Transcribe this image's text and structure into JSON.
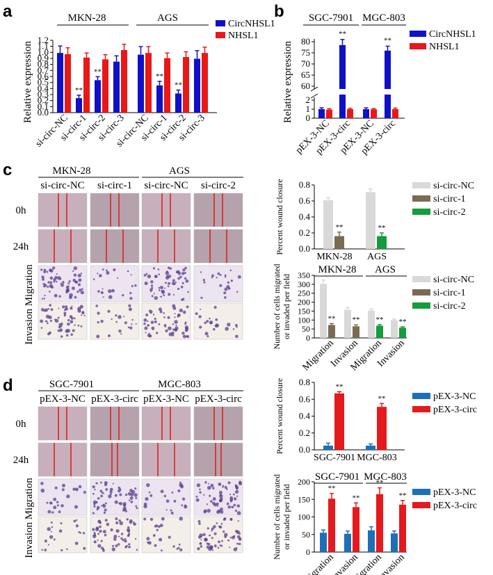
{
  "panel_labels": {
    "a": "a",
    "b": "b",
    "c": "c",
    "d": "d"
  },
  "colors": {
    "blue": "#1010c8",
    "red": "#e81818",
    "lightgray": "#d9d9d9",
    "brown": "#7b6b55",
    "green": "#159c3c",
    "steelblue": "#1f6fb8",
    "crimson": "#e41a1c"
  },
  "sig": "**",
  "chart_data": [
    {
      "id": "a",
      "type": "bar",
      "group_labels": [
        "MKN-28",
        "AGS"
      ],
      "categories": [
        "si-circ-NC",
        "si-circ-1",
        "si-circ-2",
        "si-circ-3",
        "si-circ-NC",
        "si-circ-1",
        "si-circ-2",
        "si-circ-3"
      ],
      "ylabel": "Relative expression",
      "ylim": [
        0,
        1.2
      ],
      "yticks": [
        "0.0",
        "0.1",
        "0.2",
        "0.3",
        "0.4",
        "0.5",
        "0.6",
        "0.7",
        "0.8",
        "0.9",
        "1.0",
        "1.1",
        "1.2"
      ],
      "series": [
        {
          "name": "CircNHSL1",
          "color": "#1010c8",
          "values": [
            1.03,
            0.25,
            0.56,
            0.88,
            1.0,
            0.47,
            0.33,
            0.93
          ],
          "errors": [
            0.12,
            0.05,
            0.06,
            0.1,
            0.14,
            0.07,
            0.06,
            0.14
          ],
          "sig": [
            false,
            true,
            true,
            false,
            false,
            true,
            true,
            false
          ]
        },
        {
          "name": "NHSL1",
          "color": "#e81818",
          "values": [
            1.01,
            0.95,
            0.92,
            1.08,
            1.03,
            0.94,
            0.96,
            1.03
          ],
          "errors": [
            0.11,
            0.08,
            0.08,
            0.1,
            0.11,
            0.09,
            0.09,
            0.1
          ],
          "sig": [
            false,
            false,
            false,
            false,
            false,
            false,
            false,
            false
          ]
        }
      ]
    },
    {
      "id": "b",
      "type": "bar",
      "group_labels": [
        "SGC-7901",
        "MGC-803"
      ],
      "categories": [
        "pEX-3-NC",
        "pEX-3-circ",
        "pEX-3-NC",
        "pEX-3-circ"
      ],
      "ylabel": "Relative expression",
      "yticks_upper": [
        "60",
        "65",
        "70",
        "75",
        "80"
      ],
      "yticks_lower": [
        "0",
        "1",
        "2"
      ],
      "series": [
        {
          "name": "CircNHSL1",
          "color": "#1010c8",
          "values": [
            1.0,
            78.5,
            1.0,
            76.0
          ],
          "errors": [
            0.15,
            2.5,
            0.15,
            2.0
          ],
          "sig": [
            false,
            true,
            false,
            true
          ]
        },
        {
          "name": "NHSL1",
          "color": "#e81818",
          "values": [
            0.95,
            1.0,
            0.98,
            1.0
          ],
          "errors": [
            0.1,
            0.1,
            0.08,
            0.12
          ],
          "sig": [
            false,
            false,
            false,
            false
          ]
        }
      ]
    },
    {
      "id": "c1",
      "type": "bar",
      "categories": [
        "MKN-28",
        "AGS"
      ],
      "ylabel": "Percent wound closure",
      "ylim": [
        0,
        0.8
      ],
      "yticks": [
        "0.0",
        "0.2",
        "0.4",
        "0.6",
        "0.8"
      ],
      "series": [
        {
          "name": "si-circ-NC",
          "color": "#d9d9d9",
          "values": [
            0.61,
            0.71
          ],
          "errors": [
            0.03,
            0.04
          ],
          "sig": [
            false,
            false
          ]
        },
        {
          "name": "si-circ-1",
          "color": "#7b6b55",
          "values": [
            0.16,
            null
          ],
          "errors": [
            0.05,
            null
          ],
          "sig": [
            true,
            false
          ]
        },
        {
          "name": "si-circ-2",
          "color": "#159c3c",
          "values": [
            null,
            0.16
          ],
          "errors": [
            null,
            0.04
          ],
          "sig": [
            false,
            true
          ]
        }
      ]
    },
    {
      "id": "c2",
      "type": "bar",
      "group_labels": [
        "MKN-28",
        "AGS"
      ],
      "categories": [
        "Migration",
        "Invasion",
        "Migration",
        "Invasion"
      ],
      "ylabel": "Number of cells migrated or invaded per field",
      "ylim": [
        0,
        350
      ],
      "yticks": [
        "0",
        "50",
        "100",
        "150",
        "200",
        "250",
        "300",
        "350"
      ],
      "series": [
        {
          "name": "si-circ-NC",
          "color": "#d9d9d9",
          "values": [
            302,
            158,
            152,
            100
          ],
          "errors": [
            22,
            12,
            10,
            6
          ],
          "sig": [
            false,
            false,
            false,
            false
          ]
        },
        {
          "name": "si-circ-1",
          "color": "#7b6b55",
          "values": [
            72,
            65,
            null,
            null
          ],
          "errors": [
            8,
            8,
            null,
            null
          ],
          "sig": [
            true,
            true,
            false,
            false
          ]
        },
        {
          "name": "si-circ-2",
          "color": "#159c3c",
          "values": [
            null,
            null,
            68,
            57
          ],
          "errors": [
            null,
            null,
            6,
            5
          ],
          "sig": [
            false,
            false,
            true,
            true
          ]
        }
      ]
    },
    {
      "id": "d1",
      "type": "bar",
      "categories": [
        "SGC-7901",
        "MGC-803"
      ],
      "ylabel": "Percent wound closure",
      "ylim": [
        0,
        0.8
      ],
      "yticks": [
        "0.0",
        "0.2",
        "0.4",
        "0.6",
        "0.8"
      ],
      "series": [
        {
          "name": "pEX-3-NC",
          "color": "#1f6fb8",
          "values": [
            0.05,
            0.05
          ],
          "errors": [
            0.03,
            0.02
          ],
          "sig": [
            false,
            false
          ]
        },
        {
          "name": "pEX-3-circ",
          "color": "#e41a1c",
          "values": [
            0.67,
            0.51
          ],
          "errors": [
            0.02,
            0.04
          ],
          "sig": [
            true,
            true
          ]
        }
      ]
    },
    {
      "id": "d2",
      "type": "bar",
      "group_labels": [
        "SGC-7901",
        "MGC-803"
      ],
      "categories": [
        "Migration",
        "Invasion",
        "Migration",
        "Invasion"
      ],
      "ylabel": "Number of cells migrated or invaded per field",
      "ylim": [
        0,
        200
      ],
      "yticks": [
        "0",
        "50",
        "100",
        "150",
        "200"
      ],
      "series": [
        {
          "name": "pEX-3-NC",
          "color": "#1f6fb8",
          "values": [
            55,
            52,
            62,
            53
          ],
          "errors": [
            8,
            8,
            10,
            7
          ],
          "sig": [
            false,
            false,
            false,
            false
          ]
        },
        {
          "name": "pEX-3-circ",
          "color": "#e41a1c",
          "values": [
            152,
            128,
            165,
            135
          ],
          "errors": [
            15,
            12,
            18,
            12
          ],
          "sig": [
            true,
            true,
            true,
            true
          ]
        }
      ]
    }
  ],
  "image_grid_c": {
    "group_labels": [
      "MKN-28",
      "AGS"
    ],
    "column_labels": [
      "si-circ-NC",
      "si-circ-1",
      "si-circ-NC",
      "si-circ-2"
    ],
    "row_labels": [
      "0h",
      "24h"
    ],
    "side_label": "Invasion Migration"
  },
  "image_grid_d": {
    "group_labels": [
      "SGC-7901",
      "MGC-803"
    ],
    "column_labels": [
      "pEX-3-NC",
      "pEX-3-circ",
      "pEX-3-NC",
      "pEX-3-circ"
    ],
    "row_labels": [
      "0h",
      "24h"
    ],
    "side_label": "Invasion Migration"
  }
}
